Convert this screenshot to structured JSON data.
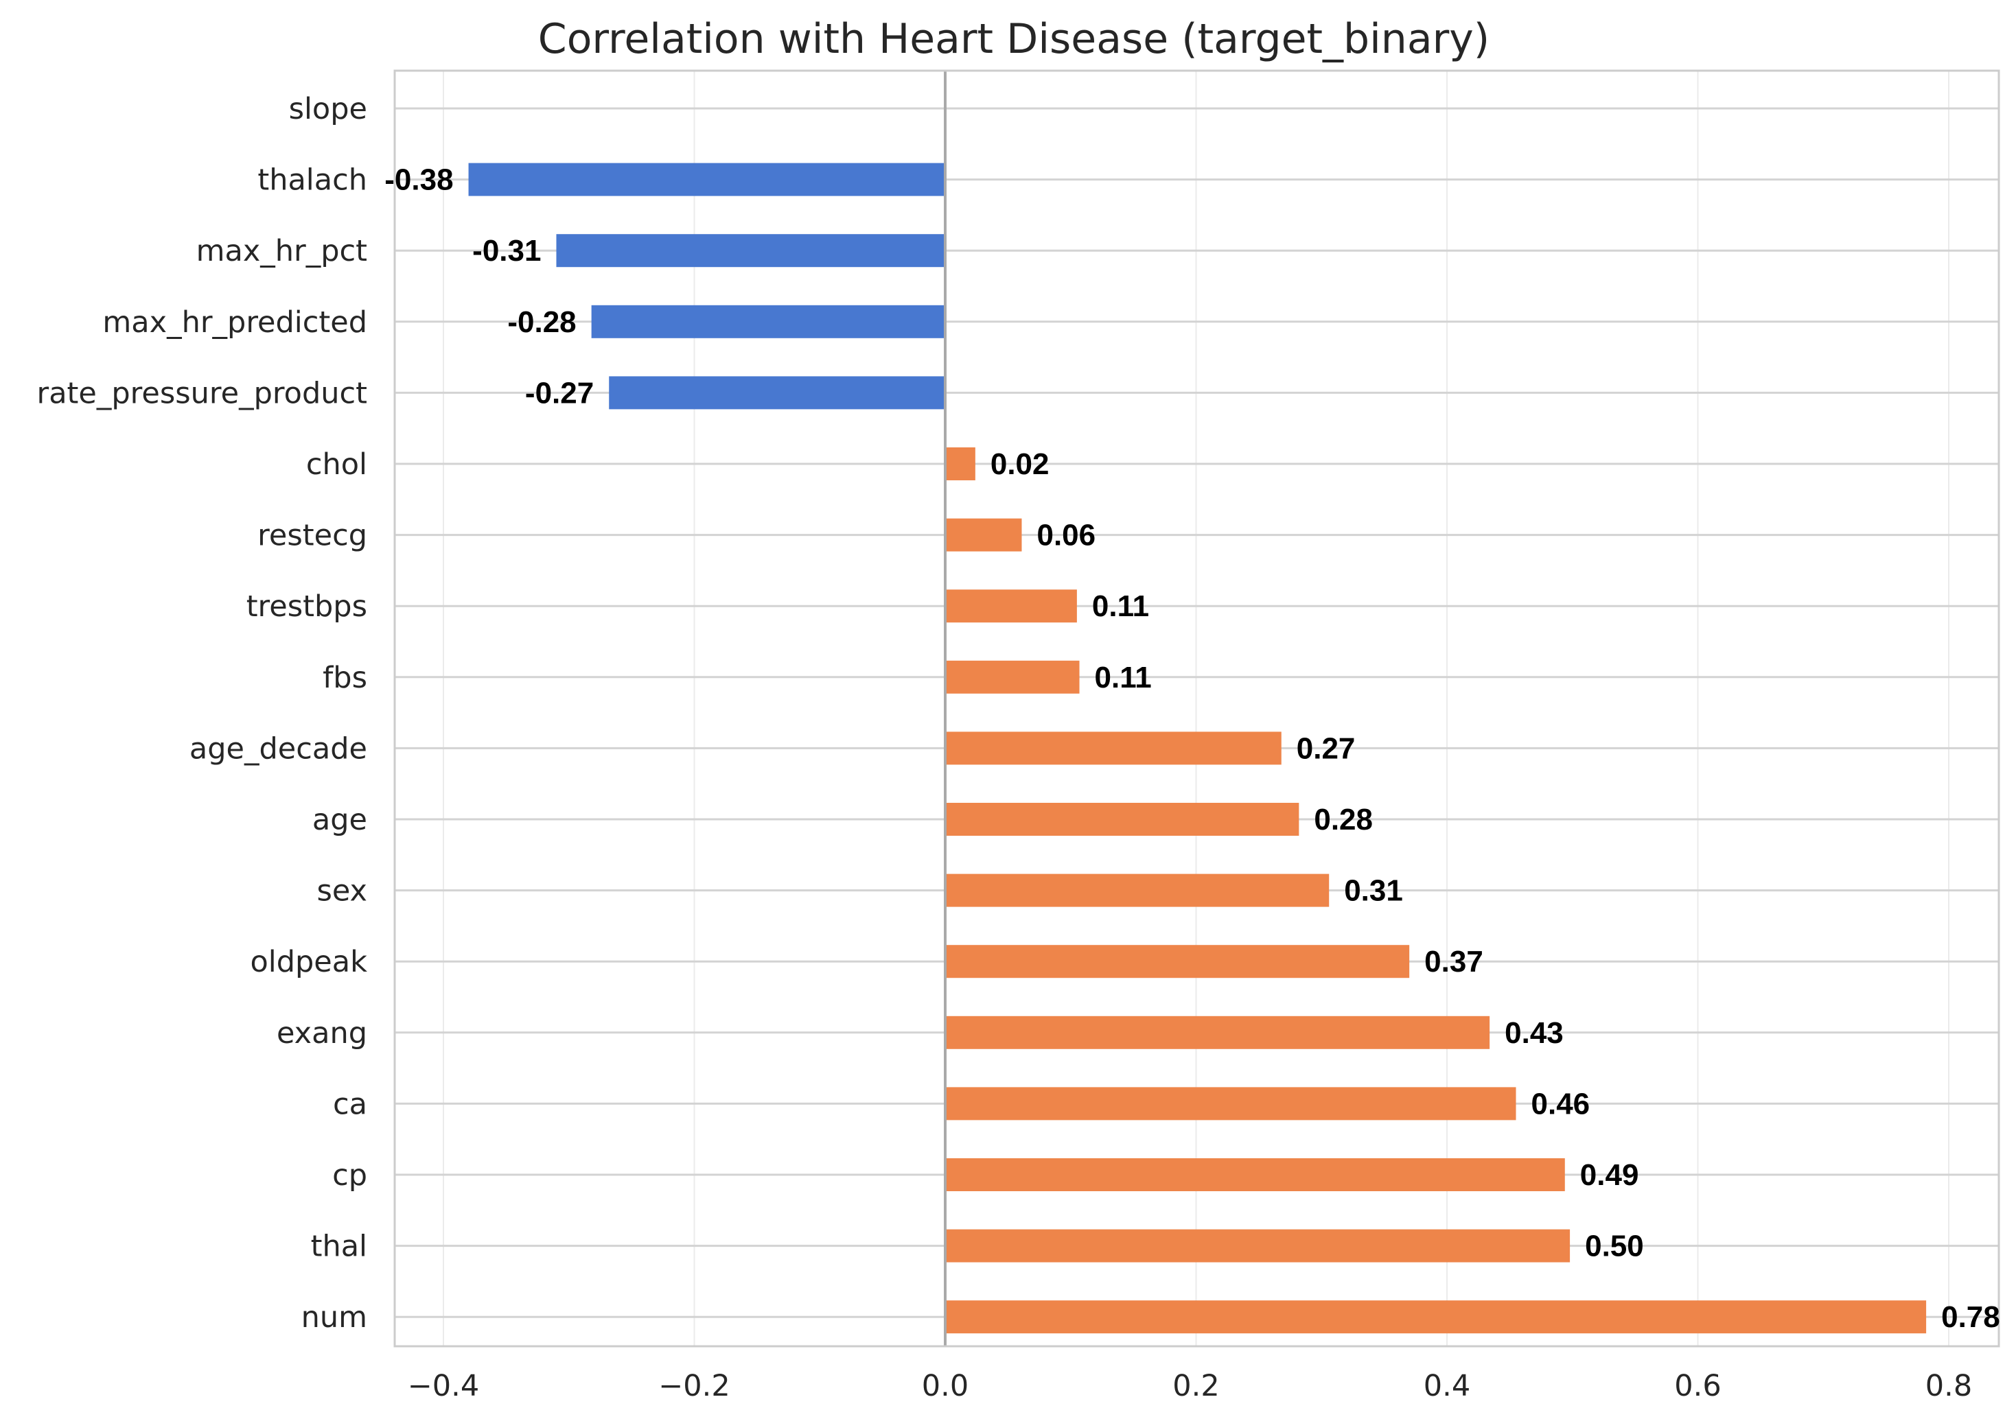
{
  "chart_data": {
    "type": "bar",
    "orientation": "horizontal",
    "title": "Correlation with Heart Disease (target_binary)",
    "xlabel": "",
    "ylabel": "",
    "xlim": [
      -0.44,
      0.84
    ],
    "xticks": [
      -0.4,
      -0.2,
      0.0,
      0.2,
      0.4,
      0.6,
      0.8
    ],
    "xtick_labels": [
      "−0.4",
      "−0.2",
      "0.0",
      "0.2",
      "0.4",
      "0.6",
      "0.8"
    ],
    "grid": true,
    "colors": {
      "negative": "#4878d0",
      "positive": "#ee854a",
      "zero_line": "#a9a9a9",
      "grid": "#d3d3d3",
      "axes": "#cccccc"
    },
    "categories": [
      "slope",
      "thalach",
      "max_hr_pct",
      "max_hr_predicted",
      "rate_pressure_product",
      "chol",
      "restecg",
      "trestbps",
      "fbs",
      "age_decade",
      "age",
      "sex",
      "oldpeak",
      "exang",
      "ca",
      "cp",
      "thal",
      "num"
    ],
    "values": [
      null,
      -0.38,
      -0.31,
      -0.28,
      -0.27,
      0.02,
      0.06,
      0.11,
      0.11,
      0.27,
      0.28,
      0.31,
      0.37,
      0.43,
      0.46,
      0.49,
      0.5,
      0.78
    ],
    "bar_values_precise": [
      null,
      -0.38,
      -0.31,
      -0.282,
      -0.268,
      0.024,
      0.061,
      0.105,
      0.107,
      0.268,
      0.282,
      0.306,
      0.37,
      0.434,
      0.455,
      0.494,
      0.498,
      0.782
    ],
    "value_labels": [
      "",
      "-0.38",
      "-0.31",
      "-0.28",
      "-0.27",
      "0.02",
      "0.06",
      "0.11",
      "0.11",
      "0.27",
      "0.28",
      "0.31",
      "0.37",
      "0.43",
      "0.46",
      "0.49",
      "0.50",
      "0.78"
    ]
  }
}
